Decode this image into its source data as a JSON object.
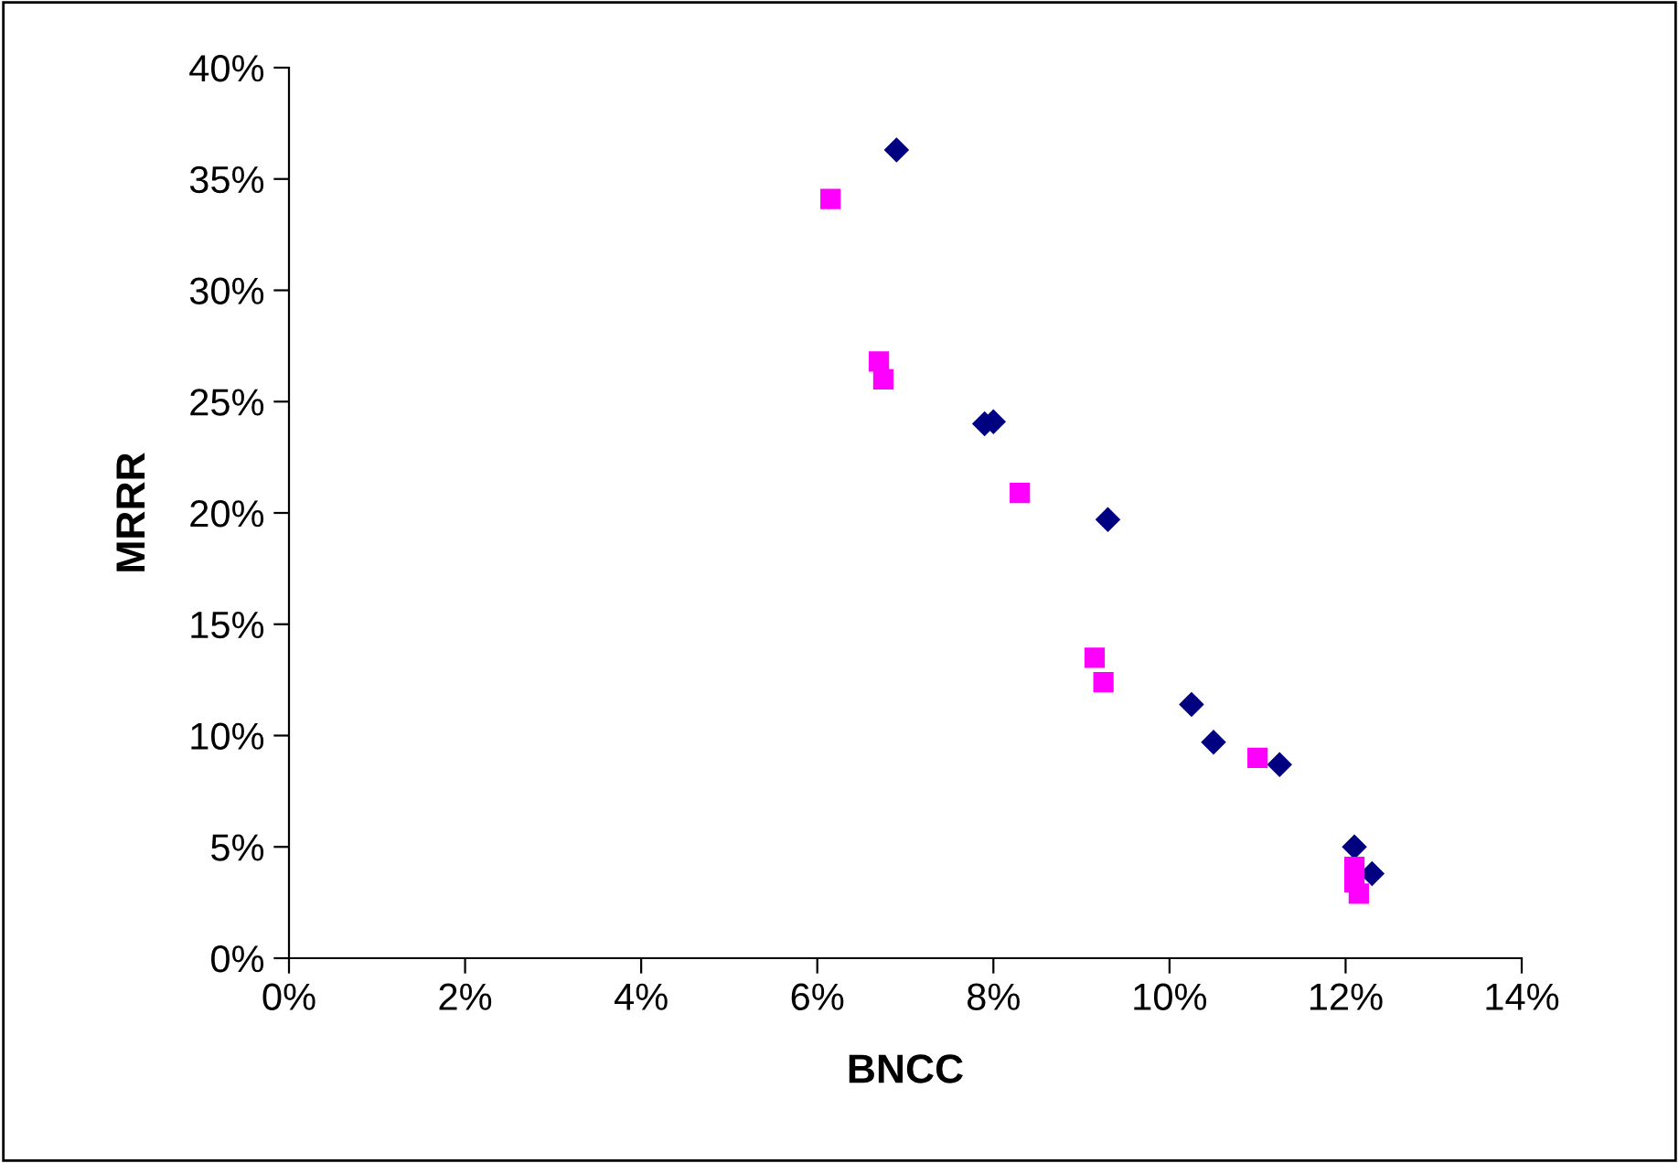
{
  "chart_data": {
    "type": "scatter",
    "xlabel": "BNCC",
    "ylabel": "MRRR",
    "xlim": [
      0,
      14
    ],
    "ylim": [
      0,
      40
    ],
    "xticks": [
      {
        "value": 0,
        "label": "0%"
      },
      {
        "value": 2,
        "label": "2%"
      },
      {
        "value": 4,
        "label": "4%"
      },
      {
        "value": 6,
        "label": "6%"
      },
      {
        "value": 8,
        "label": "8%"
      },
      {
        "value": 10,
        "label": "10%"
      },
      {
        "value": 12,
        "label": "12%"
      },
      {
        "value": 14,
        "label": "14%"
      }
    ],
    "yticks": [
      {
        "value": 0,
        "label": "0%"
      },
      {
        "value": 5,
        "label": "5%"
      },
      {
        "value": 10,
        "label": "10%"
      },
      {
        "value": 15,
        "label": "15%"
      },
      {
        "value": 20,
        "label": "20%"
      },
      {
        "value": 25,
        "label": "25%"
      },
      {
        "value": 30,
        "label": "30%"
      },
      {
        "value": 35,
        "label": "35%"
      },
      {
        "value": 40,
        "label": "40%"
      }
    ],
    "grid": false,
    "legend": false,
    "series": [
      {
        "color": "#000080",
        "marker": "diamond",
        "x": [
          6.9,
          7.9,
          8.0,
          9.3,
          10.25,
          10.5,
          11.25,
          12.1,
          12.3
        ],
        "values": [
          36.3,
          24.0,
          24.1,
          19.7,
          11.4,
          9.7,
          8.7,
          5.0,
          3.8
        ]
      },
      {
        "color": "#ff00ff",
        "marker": "square",
        "x": [
          6.15,
          6.7,
          6.75,
          8.3,
          9.15,
          9.25,
          11.0,
          12.1,
          12.1,
          12.15
        ],
        "values": [
          34.1,
          26.8,
          26.0,
          20.9,
          13.5,
          12.4,
          9.0,
          4.1,
          3.4,
          2.9
        ]
      }
    ]
  }
}
